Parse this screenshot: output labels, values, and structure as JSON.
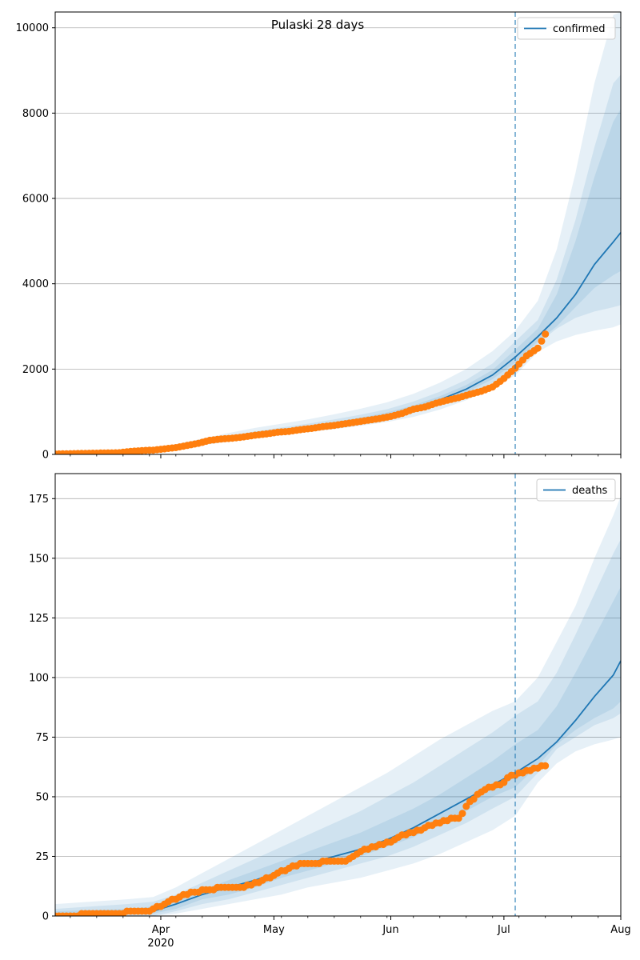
{
  "figure": {
    "title": "Pulaski 28 days",
    "date_axis": {
      "start": "2020-03-04",
      "end": "2020-08-01",
      "tick_labels": [
        {
          "date": "2020-04-01",
          "label": "Apr",
          "sublabel": "2020"
        },
        {
          "date": "2020-05-01",
          "label": "May",
          "sublabel": ""
        },
        {
          "date": "2020-06-01",
          "label": "Jun",
          "sublabel": ""
        },
        {
          "date": "2020-07-01",
          "label": "Jul",
          "sublabel": ""
        },
        {
          "date": "2020-08-01",
          "label": "Aug",
          "sublabel": ""
        }
      ]
    },
    "forecast_start": "2020-07-04"
  },
  "colors": {
    "model": "#1f77b4",
    "observed": "#ff7f0e",
    "band": "#1f77b4",
    "grid": "#b0b0b0",
    "vline": "#1f77b4"
  },
  "chart_data": [
    {
      "type": "line",
      "legend": "confirmed",
      "legend_loc": "upper-right",
      "grid": "y",
      "ylim": [
        0,
        10370
      ],
      "yticks": [
        0,
        2000,
        4000,
        6000,
        8000,
        10000
      ],
      "model": {
        "x": [
          "2020-03-04",
          "2020-03-20",
          "2020-03-29",
          "2020-04-05",
          "2020-04-12",
          "2020-04-19",
          "2020-04-26",
          "2020-05-03",
          "2020-05-10",
          "2020-05-17",
          "2020-05-24",
          "2020-05-31",
          "2020-06-07",
          "2020-06-14",
          "2020-06-21",
          "2020-06-28",
          "2020-07-04",
          "2020-07-10",
          "2020-07-15",
          "2020-07-20",
          "2020-07-25",
          "2020-07-30",
          "2020-08-01"
        ],
        "y": [
          0,
          20,
          80,
          160,
          260,
          370,
          460,
          540,
          620,
          710,
          810,
          920,
          1080,
          1280,
          1530,
          1860,
          2280,
          2760,
          3200,
          3750,
          4450,
          4980,
          5200
        ]
      },
      "bands": [
        {
          "lower": [
            0,
            0,
            50,
            120,
            210,
            300,
            380,
            450,
            520,
            590,
            670,
            760,
            880,
            1050,
            1270,
            1550,
            1850,
            2400,
            2650,
            2800,
            2900,
            2980,
            3050
          ],
          "upper": [
            20,
            60,
            140,
            240,
            370,
            500,
            620,
            720,
            820,
            940,
            1070,
            1220,
            1420,
            1680,
            2000,
            2420,
            2900,
            3600,
            4800,
            6600,
            8700,
            10300,
            10370
          ]
        },
        {
          "lower": [
            0,
            5,
            60,
            135,
            230,
            330,
            410,
            480,
            560,
            640,
            730,
            830,
            970,
            1150,
            1380,
            1680,
            2050,
            2600,
            2950,
            3200,
            3350,
            3450,
            3500
          ],
          "upper": [
            15,
            45,
            115,
            205,
            320,
            440,
            540,
            630,
            720,
            820,
            930,
            1060,
            1240,
            1470,
            1750,
            2130,
            2650,
            3150,
            4100,
            5500,
            7200,
            8700,
            8900
          ]
        },
        {
          "lower": [
            0,
            10,
            68,
            145,
            243,
            350,
            433,
            508,
            588,
            670,
            765,
            868,
            1018,
            1205,
            1448,
            1762,
            2150,
            2650,
            3000,
            3450,
            3900,
            4200,
            4300
          ],
          "upper": [
            8,
            32,
            95,
            180,
            285,
            400,
            495,
            580,
            665,
            760,
            865,
            985,
            1150,
            1365,
            1625,
            1980,
            2450,
            2950,
            3750,
            5000,
            6500,
            7800,
            8100
          ]
        }
      ],
      "observed": {
        "x": [
          "2020-03-04",
          "2020-03-21",
          "2020-03-24",
          "2020-03-27",
          "2020-03-30",
          "2020-04-02",
          "2020-04-05",
          "2020-04-08",
          "2020-04-11",
          "2020-04-14",
          "2020-04-17",
          "2020-04-20",
          "2020-04-23",
          "2020-04-26",
          "2020-04-29",
          "2020-05-02",
          "2020-05-05",
          "2020-05-08",
          "2020-05-11",
          "2020-05-14",
          "2020-05-17",
          "2020-05-20",
          "2020-05-23",
          "2020-05-26",
          "2020-05-29",
          "2020-06-01",
          "2020-06-04",
          "2020-06-07",
          "2020-06-10",
          "2020-06-13",
          "2020-06-16",
          "2020-06-19",
          "2020-06-22",
          "2020-06-25",
          "2020-06-28",
          "2020-07-01",
          "2020-07-04",
          "2020-07-07",
          "2020-07-10",
          "2020-07-12"
        ],
        "y": [
          10,
          40,
          70,
          90,
          100,
          130,
          160,
          210,
          260,
          330,
          360,
          380,
          410,
          450,
          480,
          520,
          540,
          580,
          610,
          650,
          680,
          720,
          760,
          800,
          840,
          890,
          960,
          1060,
          1110,
          1200,
          1270,
          1330,
          1410,
          1480,
          1580,
          1780,
          2020,
          2310,
          2490,
          2820
        ]
      }
    },
    {
      "type": "line",
      "legend": "deaths",
      "legend_loc": "upper-right",
      "grid": "y",
      "ylim": [
        0,
        185.5
      ],
      "yticks": [
        0,
        25,
        50,
        75,
        100,
        125,
        150,
        175
      ],
      "model": {
        "x": [
          "2020-03-04",
          "2020-03-23",
          "2020-03-30",
          "2020-04-05",
          "2020-04-12",
          "2020-04-19",
          "2020-04-26",
          "2020-05-03",
          "2020-05-10",
          "2020-05-17",
          "2020-05-24",
          "2020-05-31",
          "2020-06-07",
          "2020-06-14",
          "2020-06-21",
          "2020-06-28",
          "2020-07-04",
          "2020-07-10",
          "2020-07-15",
          "2020-07-20",
          "2020-07-25",
          "2020-07-30",
          "2020-08-01"
        ],
        "y": [
          0,
          2,
          2,
          5,
          9,
          12,
          15,
          19,
          22,
          25,
          28,
          32,
          37,
          43,
          49,
          55,
          60,
          66,
          73,
          82,
          92,
          101,
          107
        ]
      },
      "bands": [
        {
          "lower": [
            0,
            0,
            0,
            1,
            3,
            5,
            7,
            9,
            12,
            14,
            16,
            19,
            22,
            26,
            31,
            36,
            42,
            56,
            64,
            69,
            72,
            74,
            75
          ],
          "upper": [
            5,
            7,
            8,
            12,
            18,
            24,
            30,
            36,
            42,
            48,
            54,
            60,
            67,
            74,
            80,
            86,
            90,
            100,
            115,
            130,
            150,
            168,
            176
          ]
        },
        {
          "lower": [
            0,
            0,
            0,
            2,
            5,
            7,
            10,
            13,
            16,
            19,
            22,
            25,
            29,
            34,
            39,
            45,
            50,
            60,
            70,
            75,
            80,
            83,
            85
          ],
          "upper": [
            3,
            5,
            6,
            9,
            14,
            19,
            24,
            29,
            34,
            39,
            44,
            50,
            56,
            63,
            70,
            77,
            84,
            90,
            102,
            118,
            135,
            152,
            158
          ]
        },
        {
          "lower": [
            0,
            1,
            1,
            3,
            7,
            9,
            12,
            16,
            19,
            22,
            25,
            29,
            33,
            39,
            44,
            50,
            54,
            63,
            72,
            78,
            83,
            87,
            90
          ],
          "upper": [
            2,
            3,
            4,
            7,
            11,
            15,
            19,
            23,
            27,
            31,
            35,
            40,
            45,
            51,
            58,
            65,
            72,
            78,
            88,
            102,
            117,
            132,
            138
          ]
        }
      ],
      "observed": {
        "x": [
          "2020-03-04",
          "2020-03-29",
          "2020-04-06",
          "2020-04-10",
          "2020-04-14",
          "2020-04-18",
          "2020-04-22",
          "2020-04-27",
          "2020-05-01",
          "2020-05-05",
          "2020-05-08",
          "2020-05-12",
          "2020-05-15",
          "2020-05-20",
          "2020-05-25",
          "2020-05-28",
          "2020-06-01",
          "2020-06-04",
          "2020-06-07",
          "2020-06-10",
          "2020-06-14",
          "2020-06-17",
          "2020-06-19",
          "2020-06-22",
          "2020-06-26",
          "2020-06-30",
          "2020-07-03",
          "2020-07-06",
          "2020-07-09",
          "2020-07-12"
        ],
        "y": [
          0,
          2,
          8,
          10,
          11,
          12,
          12,
          14,
          17,
          20,
          22,
          22,
          23,
          23,
          28,
          29,
          31,
          34,
          35,
          37,
          39,
          41,
          41,
          48,
          53,
          55,
          59,
          60,
          62,
          63
        ]
      }
    }
  ]
}
